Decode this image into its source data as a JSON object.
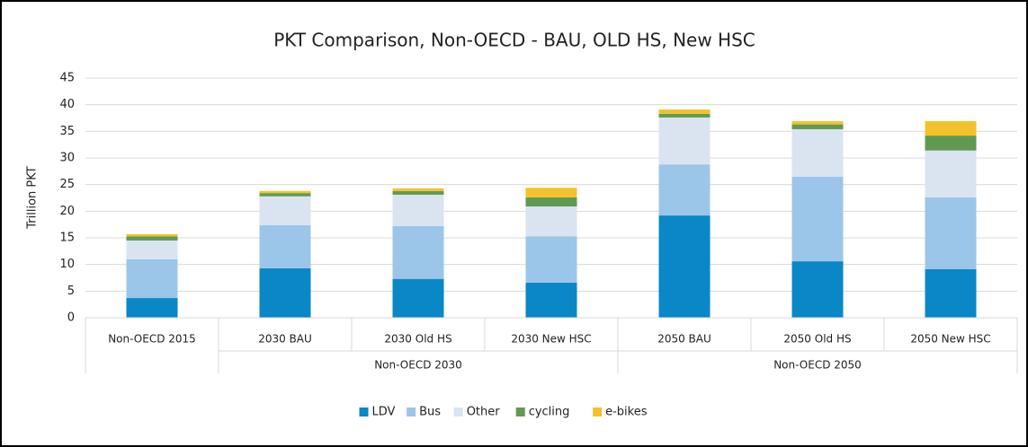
{
  "chart_data": {
    "type": "stacked-bar",
    "title": "PKT Comparison, Non-OECD - BAU, OLD HS, New HSC",
    "y_label": "Trillion PKT",
    "categories": [
      "Non-OECD 2015",
      "2030 BAU",
      "2030 Old HS",
      "2030 New HSC",
      "2050 BAU",
      "2050 Old HS",
      "2050 New HSC"
    ],
    "category_groups": [
      null,
      "Non-OECD 2030",
      "Non-OECD 2030",
      "Non-OECD 2030",
      "Non-OECD 2050",
      "Non-OECD 2050",
      "Non-OECD 2050"
    ],
    "series": [
      {
        "name": "LDV",
        "color": "#0a87c6",
        "values": [
          3.7,
          9.3,
          7.3,
          6.6,
          19.2,
          10.6,
          9.1
        ]
      },
      {
        "name": "Bus",
        "color": "#9cc5ea",
        "values": [
          7.3,
          8.1,
          9.9,
          8.7,
          9.6,
          15.9,
          13.5
        ]
      },
      {
        "name": "Other",
        "color": "#dae4f0",
        "values": [
          3.5,
          5.4,
          5.9,
          5.6,
          8.8,
          8.9,
          8.8
        ]
      },
      {
        "name": "cycling",
        "color": "#609a52",
        "values": [
          0.8,
          0.6,
          0.7,
          1.7,
          0.7,
          0.9,
          2.8
        ]
      },
      {
        "name": "e-bikes",
        "color": "#f4c12b",
        "values": [
          0.4,
          0.4,
          0.5,
          1.8,
          0.8,
          0.6,
          2.7
        ]
      }
    ],
    "ylim": [
      0,
      45
    ],
    "yticks": [
      0,
      5,
      10,
      15,
      20,
      25,
      30,
      35,
      40,
      45
    ],
    "grid": true,
    "legend": "bottom"
  }
}
